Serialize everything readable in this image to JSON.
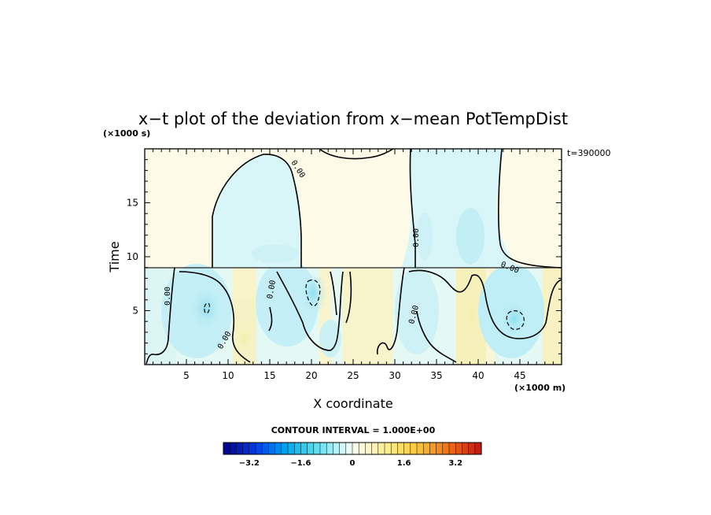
{
  "chart_data": {
    "type": "heatmap",
    "title": "x−t plot of the deviation from x−mean PotTempDist",
    "xlabel": "X coordinate",
    "ylabel": "Time",
    "x_unit": "(×1000 m)",
    "y_unit": "(×1000 s)",
    "time_stamp": "t=390000",
    "xlim": [
      0,
      50
    ],
    "ylim": [
      0,
      20
    ],
    "xticks": [
      "5",
      "10",
      "15",
      "20",
      "25",
      "30",
      "35",
      "40",
      "45"
    ],
    "yticks": [
      "5",
      "10",
      "15"
    ],
    "contour_interval_text": "CONTOUR INTERVAL = 1.000E+00",
    "contour_labels": [
      "0.00",
      "0.00",
      "0.00",
      "0.00",
      "0.00",
      "0.00",
      "0.00"
    ],
    "colorbar": {
      "range": [
        -4,
        4
      ],
      "tick_labels": [
        "−3.2",
        "−1.6",
        "0",
        "1.6",
        "3.2"
      ],
      "tick_values": [
        -3.2,
        -1.6,
        0,
        1.6,
        3.2
      ],
      "n_levels": 40
    },
    "colors": {
      "neg_light": "#d8f6f8",
      "neg_mid": "#b6ecf4",
      "pos_light": "#fdf9e1",
      "pos_mid": "#fbf3bf",
      "neutral": "#fdfbea"
    }
  }
}
